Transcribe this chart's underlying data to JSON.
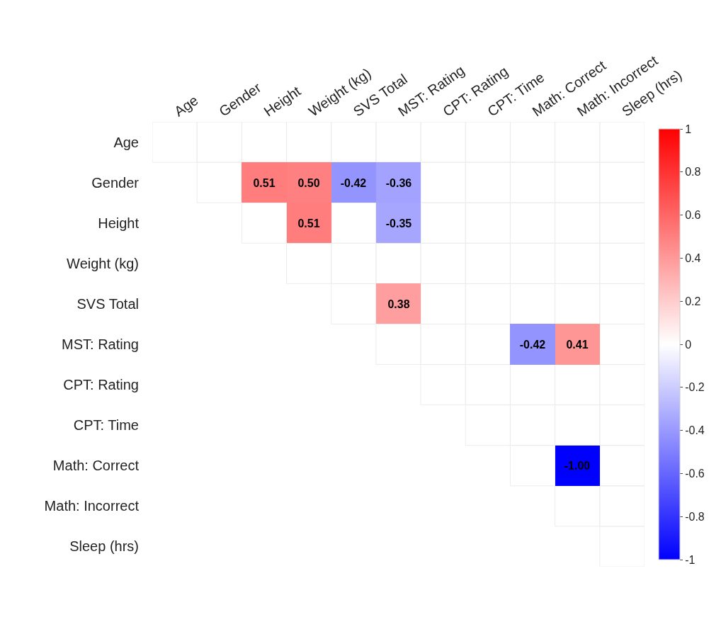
{
  "chart_data": {
    "type": "heatmap",
    "categories": [
      "Age",
      "Gender",
      "Height",
      "Weight (kg)",
      "SVS Total",
      "MST: Rating",
      "CPT: Rating",
      "CPT: Time",
      "Math: Correct",
      "Math: Incorrect",
      "Sleep (hrs)"
    ],
    "y_categories": [
      "Age",
      "Gender",
      "Height",
      "Weight (kg)",
      "SVS Total",
      "MST: Rating",
      "CPT: Rating",
      "CPT: Time",
      "Math: Correct",
      "Math: Incorrect",
      "Sleep (hrs)"
    ],
    "cells": [
      [
        null,
        null,
        null,
        null,
        null,
        null,
        null,
        null,
        null,
        null,
        null
      ],
      [
        null,
        null,
        0.51,
        0.5,
        -0.42,
        -0.36,
        null,
        null,
        null,
        null,
        null
      ],
      [
        null,
        null,
        null,
        0.51,
        null,
        -0.35,
        null,
        null,
        null,
        null,
        null
      ],
      [
        null,
        null,
        null,
        null,
        null,
        null,
        null,
        null,
        null,
        null,
        null
      ],
      [
        null,
        null,
        null,
        null,
        null,
        0.38,
        null,
        null,
        null,
        null,
        null
      ],
      [
        null,
        null,
        null,
        null,
        null,
        null,
        null,
        null,
        -0.42,
        0.41,
        null
      ],
      [
        null,
        null,
        null,
        null,
        null,
        null,
        null,
        null,
        null,
        null,
        null
      ],
      [
        null,
        null,
        null,
        null,
        null,
        null,
        null,
        null,
        null,
        null,
        null
      ],
      [
        null,
        null,
        null,
        null,
        null,
        null,
        null,
        null,
        null,
        -1.0,
        null
      ],
      [
        null,
        null,
        null,
        null,
        null,
        null,
        null,
        null,
        null,
        null,
        null
      ],
      [
        null,
        null,
        null,
        null,
        null,
        null,
        null,
        null,
        null,
        null,
        null
      ]
    ],
    "cell_labels": [
      [
        null,
        null,
        null,
        null,
        null,
        null,
        null,
        null,
        null,
        null,
        null
      ],
      [
        null,
        null,
        "0.51",
        "0.50",
        "-0.42",
        "-0.36",
        null,
        null,
        null,
        null,
        null
      ],
      [
        null,
        null,
        null,
        "0.51",
        null,
        "-0.35",
        null,
        null,
        null,
        null,
        null
      ],
      [
        null,
        null,
        null,
        null,
        null,
        null,
        null,
        null,
        null,
        null,
        null
      ],
      [
        null,
        null,
        null,
        null,
        null,
        "0.38",
        null,
        null,
        null,
        null,
        null
      ],
      [
        null,
        null,
        null,
        null,
        null,
        null,
        null,
        null,
        "-0.42",
        "0.41",
        null
      ],
      [
        null,
        null,
        null,
        null,
        null,
        null,
        null,
        null,
        null,
        null,
        null
      ],
      [
        null,
        null,
        null,
        null,
        null,
        null,
        null,
        null,
        null,
        null,
        null
      ],
      [
        null,
        null,
        null,
        null,
        null,
        null,
        null,
        null,
        null,
        "-1.00",
        null
      ],
      [
        null,
        null,
        null,
        null,
        null,
        null,
        null,
        null,
        null,
        null,
        null
      ],
      [
        null,
        null,
        null,
        null,
        null,
        null,
        null,
        null,
        null,
        null,
        null
      ]
    ],
    "clim": [
      -1,
      1
    ],
    "cticks": [
      -1,
      -0.8,
      -0.6,
      -0.4,
      -0.2,
      0,
      0.2,
      0.4,
      0.6,
      0.8,
      1
    ]
  }
}
